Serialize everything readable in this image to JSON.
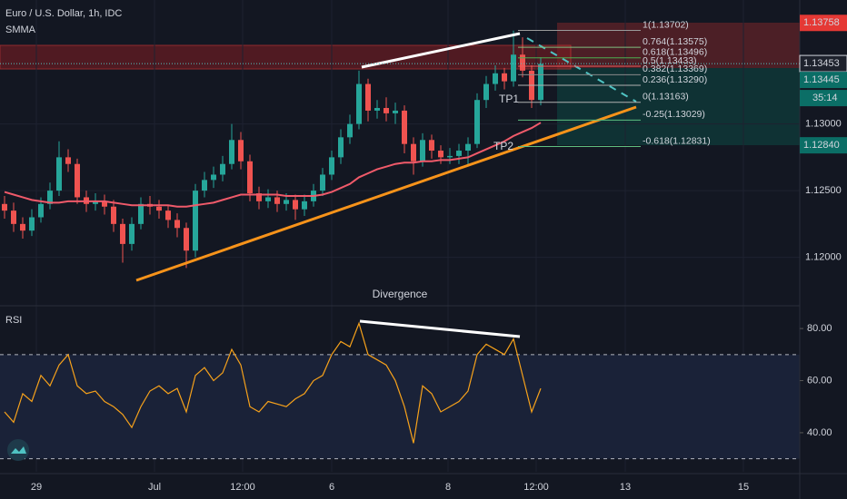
{
  "chart_data": [
    {
      "type": "candlestick",
      "title": "Euro / U.S. Dollar, 1h, IDC",
      "indicator": "SMMA",
      "open": [
        1.124,
        1.1235,
        1.1225,
        1.122,
        1.123,
        1.124,
        1.125,
        1.1275,
        1.127,
        1.1245,
        1.124,
        1.1242,
        1.1238,
        1.1225,
        1.121,
        1.1225,
        1.124,
        1.1238,
        1.1235,
        1.1228,
        1.1222,
        1.1205,
        1.125,
        1.1258,
        1.1262,
        1.127,
        1.1288,
        1.1272,
        1.1248,
        1.1242,
        1.1245,
        1.124,
        1.1243,
        1.1236,
        1.1242,
        1.125,
        1.1262,
        1.1275,
        1.129,
        1.13,
        1.133,
        1.131,
        1.1312,
        1.1308,
        1.131,
        1.1285,
        1.1272,
        1.1288,
        1.128,
        1.1275,
        1.1276,
        1.128,
        1.1285,
        1.1318,
        1.133,
        1.1338,
        1.1332,
        1.1352,
        1.134,
        1.1318
      ],
      "high": [
        1.1246,
        1.1241,
        1.123,
        1.1236,
        1.1245,
        1.1256,
        1.1287,
        1.1281,
        1.1274,
        1.125,
        1.1248,
        1.1247,
        1.1243,
        1.1229,
        1.123,
        1.1245,
        1.1246,
        1.1243,
        1.1239,
        1.1233,
        1.1226,
        1.1255,
        1.1264,
        1.1268,
        1.1276,
        1.13,
        1.1294,
        1.1277,
        1.1253,
        1.1251,
        1.125,
        1.1248,
        1.1247,
        1.1247,
        1.1255,
        1.1267,
        1.128,
        1.1296,
        1.1307,
        1.134,
        1.1334,
        1.1318,
        1.132,
        1.1316,
        1.1314,
        1.129,
        1.1293,
        1.1292,
        1.1284,
        1.1282,
        1.1285,
        1.129,
        1.1323,
        1.1336,
        1.1344,
        1.1342,
        1.137,
        1.1365,
        1.1344,
        1.135
      ],
      "low": [
        1.1229,
        1.1219,
        1.1214,
        1.1216,
        1.1226,
        1.1236,
        1.1246,
        1.1264,
        1.124,
        1.1234,
        1.1235,
        1.1232,
        1.1219,
        1.1196,
        1.1205,
        1.1221,
        1.1232,
        1.1229,
        1.1222,
        1.1215,
        1.1192,
        1.12,
        1.1245,
        1.1252,
        1.1257,
        1.1266,
        1.1266,
        1.1242,
        1.1236,
        1.1237,
        1.1234,
        1.1235,
        1.1228,
        1.1231,
        1.1238,
        1.1246,
        1.1258,
        1.127,
        1.1285,
        1.1296,
        1.1302,
        1.1304,
        1.1302,
        1.13,
        1.1278,
        1.1262,
        1.1268,
        1.1274,
        1.127,
        1.127,
        1.127,
        1.1268,
        1.1282,
        1.1312,
        1.1325,
        1.1326,
        1.1328,
        1.1335,
        1.1312,
        1.1314
      ],
      "close": [
        1.1235,
        1.1225,
        1.122,
        1.123,
        1.124,
        1.125,
        1.1275,
        1.127,
        1.1245,
        1.124,
        1.1242,
        1.1238,
        1.1225,
        1.121,
        1.1225,
        1.124,
        1.1238,
        1.1235,
        1.1228,
        1.1222,
        1.1205,
        1.125,
        1.1258,
        1.1262,
        1.127,
        1.1288,
        1.1272,
        1.1248,
        1.1242,
        1.1245,
        1.124,
        1.1243,
        1.1236,
        1.1242,
        1.125,
        1.1262,
        1.1275,
        1.129,
        1.13,
        1.133,
        1.131,
        1.1312,
        1.1308,
        1.131,
        1.1285,
        1.1272,
        1.1288,
        1.128,
        1.1275,
        1.1276,
        1.128,
        1.1285,
        1.1318,
        1.133,
        1.1338,
        1.1332,
        1.1352,
        1.134,
        1.1318,
        1.1345
      ],
      "up_color": "#26a69a",
      "down_color": "#ef5350",
      "smma": {
        "color": "#f05a6a",
        "values": [
          1.1249,
          1.1247,
          1.1245,
          1.1243,
          1.1242,
          1.1241,
          1.1241,
          1.1242,
          1.1242,
          1.1242,
          1.1242,
          1.1242,
          1.1241,
          1.124,
          1.1239,
          1.1239,
          1.1239,
          1.1239,
          1.1239,
          1.1238,
          1.1238,
          1.1239,
          1.124,
          1.1241,
          1.1243,
          1.1245,
          1.1247,
          1.1247,
          1.1247,
          1.1247,
          1.1247,
          1.1246,
          1.1246,
          1.1246,
          1.1246,
          1.1247,
          1.1249,
          1.1252,
          1.1255,
          1.126,
          1.1263,
          1.1266,
          1.1268,
          1.127,
          1.1271,
          1.1271,
          1.1272,
          1.1272,
          1.1273,
          1.1273,
          1.1274,
          1.1275,
          1.1278,
          1.1281,
          1.1284,
          1.1287,
          1.1291,
          1.1294,
          1.1297,
          1.1301
        ]
      },
      "xlim": [
        -0.5,
        87.5
      ],
      "xticks": [
        {
          "value": 3.5,
          "label": "29"
        },
        {
          "value": 16.5,
          "label": "Jul"
        },
        {
          "value": 26.2,
          "label": "12:00"
        },
        {
          "value": 36,
          "label": "6"
        },
        {
          "value": 48.8,
          "label": "8"
        },
        {
          "value": 58.5,
          "label": "12:00"
        },
        {
          "value": 68.3,
          "label": "13"
        },
        {
          "value": 81.3,
          "label": "15"
        }
      ],
      "ylim": [
        1.1165,
        1.1393
      ],
      "yticks": [
        {
          "value": 1.12,
          "label": "1.12000"
        },
        {
          "value": 1.125,
          "label": "1.12500"
        },
        {
          "value": 1.13,
          "label": "1.13000"
        }
      ],
      "price_labels": [
        {
          "value": 1.13758,
          "label": "1.13758",
          "color": "#e53935"
        },
        {
          "value": 1.13453,
          "label": "1.13453",
          "color": "#1e222d"
        },
        {
          "value": 1.13445,
          "label": "1.13445",
          "color": "#0b6e66"
        },
        {
          "value": 1.1284,
          "label": "1.12840",
          "color": "#0b6e66"
        }
      ],
      "countdown": "35:14",
      "fib_levels": [
        {
          "value": 1.13702,
          "label": "1(1.13702)",
          "color": "#9a9a9a"
        },
        {
          "value": 1.13575,
          "label": "0.764(1.13575)",
          "color": "#7fbf7f"
        },
        {
          "value": 1.13496,
          "label": "0.618(1.13496)",
          "color": "#4caf50"
        },
        {
          "value": 1.13433,
          "label": "0.5(1.13433)",
          "color": "#f25c5c"
        },
        {
          "value": 1.13369,
          "label": "0.382(1.13369)",
          "color": "#8a8a8a"
        },
        {
          "value": 1.1329,
          "label": "0.236(1.13290)",
          "color": "#b0b0b0"
        },
        {
          "value": 1.13163,
          "label": "0(1.13163)",
          "color": "#b0b0b0"
        },
        {
          "value": 1.13029,
          "label": "-0.25(1.13029)",
          "color": "#5fbf80"
        },
        {
          "value": 1.12831,
          "label": "-0.618(1.12831)",
          "color": "#5fbf80"
        }
      ],
      "annotations": [
        "Divergence",
        "TP1",
        "TP2"
      ]
    },
    {
      "type": "line",
      "title": "RSI",
      "series": [
        {
          "color": "#f7a21b",
          "values": [
            48,
            44,
            55,
            52,
            62,
            58,
            66,
            70,
            58,
            55,
            56,
            52,
            50,
            47,
            42,
            50,
            56,
            58,
            55,
            57,
            48,
            62,
            65,
            60,
            63,
            72,
            66,
            50,
            48,
            52,
            51,
            50,
            53,
            55,
            60,
            62,
            70,
            75,
            73,
            82,
            70,
            68,
            66,
            60,
            50,
            36,
            58,
            55,
            48,
            50,
            52,
            56,
            70,
            74,
            72,
            70,
            76,
            62,
            48,
            57
          ]
        }
      ],
      "xlim": [
        -0.5,
        87.5
      ],
      "ylim": [
        25,
        87.7
      ],
      "yticks": [
        {
          "value": 40,
          "label": "40.00"
        },
        {
          "value": 60,
          "label": "60.00"
        },
        {
          "value": 80,
          "label": "80.00"
        }
      ],
      "bands": [
        30,
        70
      ]
    }
  ]
}
